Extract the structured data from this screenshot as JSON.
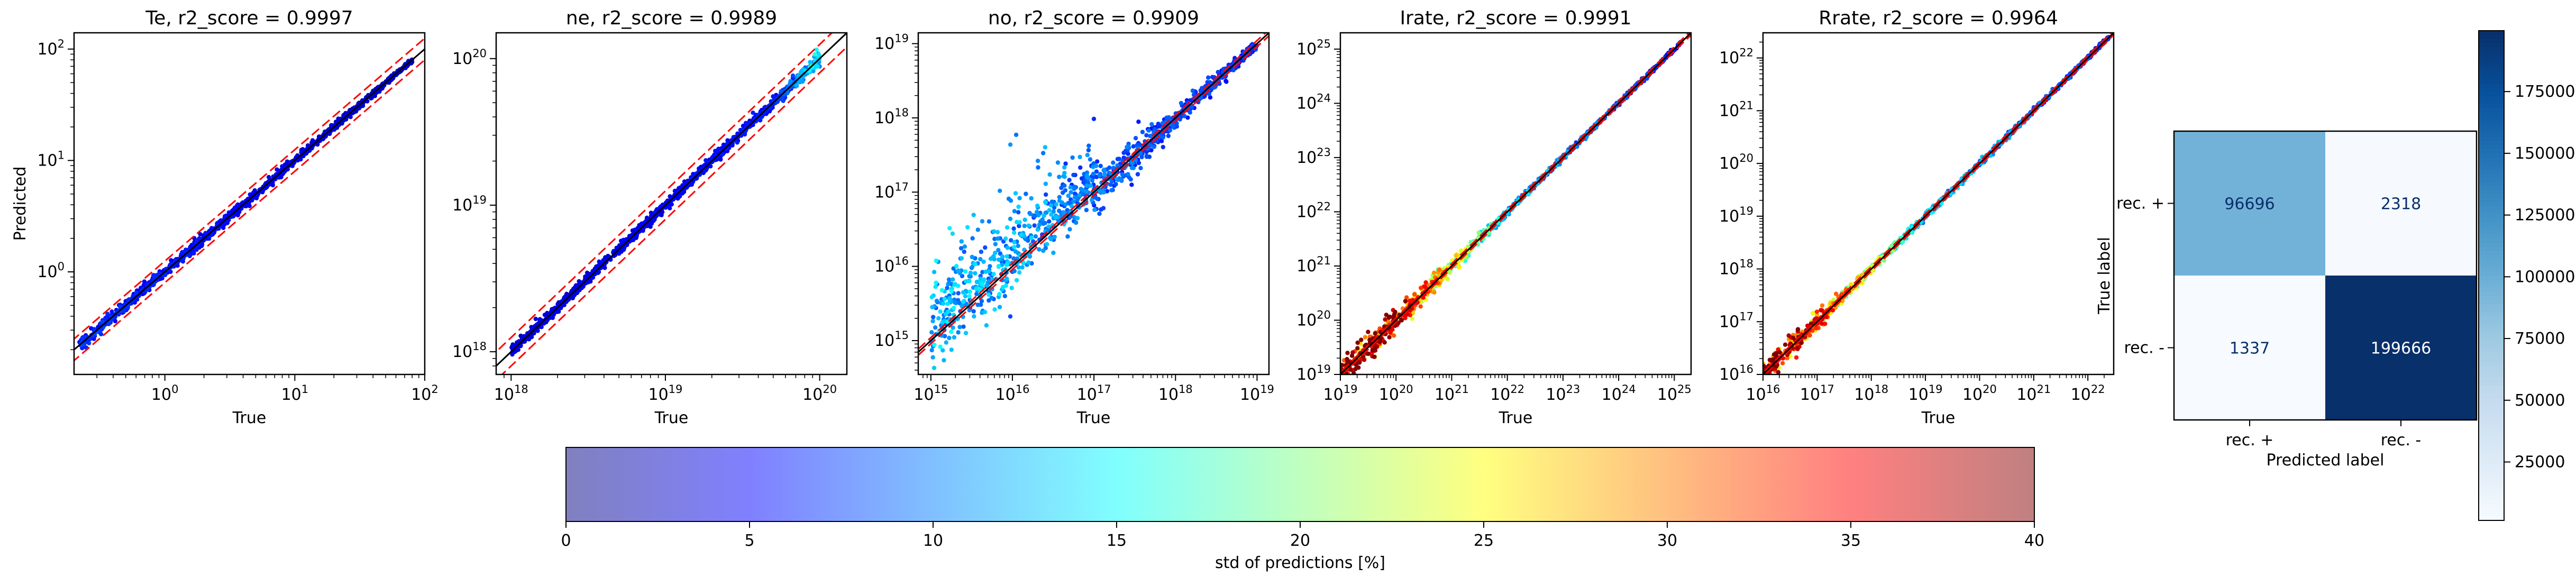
{
  "chart_data": [
    {
      "id": "Te",
      "type": "scatter",
      "title": "Te, r2_score = 0.9997",
      "xlabel": "True",
      "ylabel": "Predicted",
      "scale": "log",
      "xlim": [
        0.2,
        100
      ],
      "ylim": [
        0.12,
        140
      ],
      "xticks": [
        {
          "v": 1,
          "b": "10",
          "e": "0"
        },
        {
          "v": 10,
          "b": "10",
          "e": "1"
        },
        {
          "v": 100,
          "b": "10",
          "e": "2"
        }
      ],
      "yticks": [
        {
          "v": 1,
          "b": "10",
          "e": "0"
        },
        {
          "v": 10,
          "b": "10",
          "e": "1"
        },
        {
          "v": 100,
          "b": "10",
          "e": "2"
        }
      ],
      "data_range": [
        0.22,
        80
      ],
      "band_factor": 1.25,
      "spread": [
        {
          "v": 0.22,
          "s": 0.05
        },
        {
          "v": 80,
          "s": 0.02
        }
      ],
      "std_pct": [
        {
          "v": 0.22,
          "s": 6
        },
        {
          "v": 80,
          "s": 2
        }
      ]
    },
    {
      "id": "ne",
      "type": "scatter",
      "title": "ne, r2_score = 0.9989",
      "xlabel": "True",
      "ylabel": "",
      "scale": "log",
      "xlim": [
        8e+17,
        1.5e+20
      ],
      "ylim": [
        7e+17,
        1.5e+20
      ],
      "xticks": [
        {
          "v": 1e+18,
          "b": "10",
          "e": "18"
        },
        {
          "v": 1e+19,
          "b": "10",
          "e": "19"
        },
        {
          "v": 1e+20,
          "b": "10",
          "e": "20"
        }
      ],
      "yticks": [
        {
          "v": 1e+18,
          "b": "10",
          "e": "18"
        },
        {
          "v": 1e+19,
          "b": "10",
          "e": "19"
        },
        {
          "v": 1e+20,
          "b": "10",
          "e": "20"
        }
      ],
      "data_range": [
        1e+18,
        1e+20
      ],
      "band_factor": 1.25,
      "spread": [
        {
          "v": 1e+18,
          "s": 0.03
        },
        {
          "v": 5e+19,
          "s": 0.03
        },
        {
          "v": 1e+20,
          "s": 0.06
        }
      ],
      "std_pct": [
        {
          "v": 1e+18,
          "s": 3
        },
        {
          "v": 5e+19,
          "s": 5
        },
        {
          "v": 1e+20,
          "s": 14
        }
      ]
    },
    {
      "id": "no",
      "type": "scatter",
      "title": "no, r2_score = 0.9909",
      "xlabel": "True",
      "ylabel": "",
      "scale": "log",
      "xlim": [
        700000000000000.0,
        1.4e+19
      ],
      "ylim": [
        350000000000000.0,
        1.4e+19
      ],
      "xticks": [
        {
          "v": 1000000000000000.0,
          "b": "10",
          "e": "15"
        },
        {
          "v": 1e+16,
          "b": "10",
          "e": "16"
        },
        {
          "v": 1e+17,
          "b": "10",
          "e": "17"
        },
        {
          "v": 1e+18,
          "b": "10",
          "e": "18"
        },
        {
          "v": 1e+19,
          "b": "10",
          "e": "19"
        }
      ],
      "yticks": [
        {
          "v": 1000000000000000.0,
          "b": "10",
          "e": "15"
        },
        {
          "v": 1e+16,
          "b": "10",
          "e": "16"
        },
        {
          "v": 1e+17,
          "b": "10",
          "e": "17"
        },
        {
          "v": 1e+18,
          "b": "10",
          "e": "18"
        },
        {
          "v": 1e+19,
          "b": "10",
          "e": "19"
        }
      ],
      "data_range": [
        1000000000000000.0,
        1e+19
      ],
      "band_factor": 1.1,
      "spread": [
        {
          "v": 1000000000000000.0,
          "s": 0.45
        },
        {
          "v": 1e+16,
          "s": 0.5
        },
        {
          "v": 1e+17,
          "s": 0.3
        },
        {
          "v": 1e+18,
          "s": 0.12
        },
        {
          "v": 1e+19,
          "s": 0.05
        }
      ],
      "std_pct": [
        {
          "v": 1000000000000000.0,
          "s": 12
        },
        {
          "v": 1e+16,
          "s": 11
        },
        {
          "v": 1e+17,
          "s": 9
        },
        {
          "v": 1e+18,
          "s": 7
        },
        {
          "v": 1e+19,
          "s": 6
        }
      ]
    },
    {
      "id": "Irate",
      "type": "scatter",
      "title": "Irate, r2_score = 0.9991",
      "xlabel": "True",
      "ylabel": "",
      "scale": "log",
      "xlim": [
        1e+19,
        2e+25
      ],
      "ylim": [
        1e+19,
        2e+25
      ],
      "xticks": [
        {
          "v": 1e+19,
          "b": "10",
          "e": "19"
        },
        {
          "v": 1e+20,
          "b": "10",
          "e": "20"
        },
        {
          "v": 1e+21,
          "b": "10",
          "e": "21"
        },
        {
          "v": 1e+22,
          "b": "10",
          "e": "22"
        },
        {
          "v": 1e+23,
          "b": "10",
          "e": "23"
        },
        {
          "v": 1e+24,
          "b": "10",
          "e": "24"
        },
        {
          "v": 1e+25,
          "b": "10",
          "e": "25"
        }
      ],
      "yticks": [
        {
          "v": 1e+19,
          "b": "10",
          "e": "19"
        },
        {
          "v": 1e+20,
          "b": "10",
          "e": "20"
        },
        {
          "v": 1e+21,
          "b": "10",
          "e": "21"
        },
        {
          "v": 1e+22,
          "b": "10",
          "e": "22"
        },
        {
          "v": 1e+23,
          "b": "10",
          "e": "23"
        },
        {
          "v": 1e+24,
          "b": "10",
          "e": "24"
        },
        {
          "v": 1e+25,
          "b": "10",
          "e": "25"
        }
      ],
      "data_range": [
        1e+19,
        1.3e+25
      ],
      "band_factor": 1.1,
      "spread": [
        {
          "v": 1e+19,
          "s": 0.25
        },
        {
          "v": 1e+20,
          "s": 0.2
        },
        {
          "v": 1e+21,
          "s": 0.12
        },
        {
          "v": 1e+22,
          "s": 0.05
        },
        {
          "v": 1.3e+25,
          "s": 0.03
        }
      ],
      "std_pct": [
        {
          "v": 1e+19,
          "s": 38
        },
        {
          "v": 1e+20,
          "s": 34
        },
        {
          "v": 1e+21,
          "s": 22
        },
        {
          "v": 1e+22,
          "s": 12
        },
        {
          "v": 1.3e+25,
          "s": 5
        }
      ]
    },
    {
      "id": "Rrate",
      "type": "scatter",
      "title": "Rrate, r2_score = 0.9964",
      "xlabel": "True",
      "ylabel": "",
      "scale": "log",
      "xlim": [
        1e+16,
        3e+22
      ],
      "ylim": [
        1e+16,
        3e+22
      ],
      "xticks": [
        {
          "v": 1e+16,
          "b": "10",
          "e": "16"
        },
        {
          "v": 1e+17,
          "b": "10",
          "e": "17"
        },
        {
          "v": 1e+18,
          "b": "10",
          "e": "18"
        },
        {
          "v": 1e+19,
          "b": "10",
          "e": "19"
        },
        {
          "v": 1e+20,
          "b": "10",
          "e": "20"
        },
        {
          "v": 1e+21,
          "b": "10",
          "e": "21"
        },
        {
          "v": 1e+22,
          "b": "10",
          "e": "22"
        }
      ],
      "yticks": [
        {
          "v": 1e+16,
          "b": "10",
          "e": "16"
        },
        {
          "v": 1e+17,
          "b": "10",
          "e": "17"
        },
        {
          "v": 1e+18,
          "b": "10",
          "e": "18"
        },
        {
          "v": 1e+19,
          "b": "10",
          "e": "19"
        },
        {
          "v": 1e+20,
          "b": "10",
          "e": "20"
        },
        {
          "v": 1e+21,
          "b": "10",
          "e": "21"
        },
        {
          "v": 1e+22,
          "b": "10",
          "e": "22"
        }
      ],
      "data_range": [
        1e+16,
        2.5e+22
      ],
      "band_factor": 1.1,
      "spread": [
        {
          "v": 1e+16,
          "s": 0.22
        },
        {
          "v": 1e+17,
          "s": 0.15
        },
        {
          "v": 1e+18,
          "s": 0.06
        },
        {
          "v": 2.5e+22,
          "s": 0.03
        }
      ],
      "std_pct": [
        {
          "v": 1e+16,
          "s": 36
        },
        {
          "v": 1e+17,
          "s": 30
        },
        {
          "v": 1e+18,
          "s": 20
        },
        {
          "v": 1e+19,
          "s": 12
        },
        {
          "v": 2.5e+22,
          "s": 6
        }
      ]
    },
    {
      "id": "confusion",
      "type": "heatmap",
      "xlabel": "Predicted label",
      "ylabel": "True label",
      "row_labels": [
        "rec. +",
        "rec. -"
      ],
      "col_labels": [
        "rec. +",
        "rec. -"
      ],
      "values": [
        [
          96696,
          2318
        ],
        [
          1337,
          199666
        ]
      ],
      "colormap": "Blues",
      "vmin": 1337,
      "vmax": 199666,
      "colorbar_ticks": [
        {
          "v": 25000,
          "label": "25000"
        },
        {
          "v": 50000,
          "label": "50000"
        },
        {
          "v": 75000,
          "label": "75000"
        },
        {
          "v": 100000,
          "label": "100000"
        },
        {
          "v": 125000,
          "label": "125000"
        },
        {
          "v": 150000,
          "label": "150000"
        },
        {
          "v": 175000,
          "label": "175000"
        }
      ]
    }
  ],
  "std_colorbar": {
    "label": "std of predictions [%]",
    "min": 0,
    "max": 40,
    "ticks": [
      "0",
      "5",
      "10",
      "15",
      "20",
      "25",
      "30",
      "35",
      "40"
    ],
    "colormap": "jet",
    "alpha": 0.5
  },
  "colors": {
    "identity_line": "#000000",
    "band_line": "#ff0000",
    "blues_low": "#f7fbff",
    "blues_high": "#08306b"
  }
}
